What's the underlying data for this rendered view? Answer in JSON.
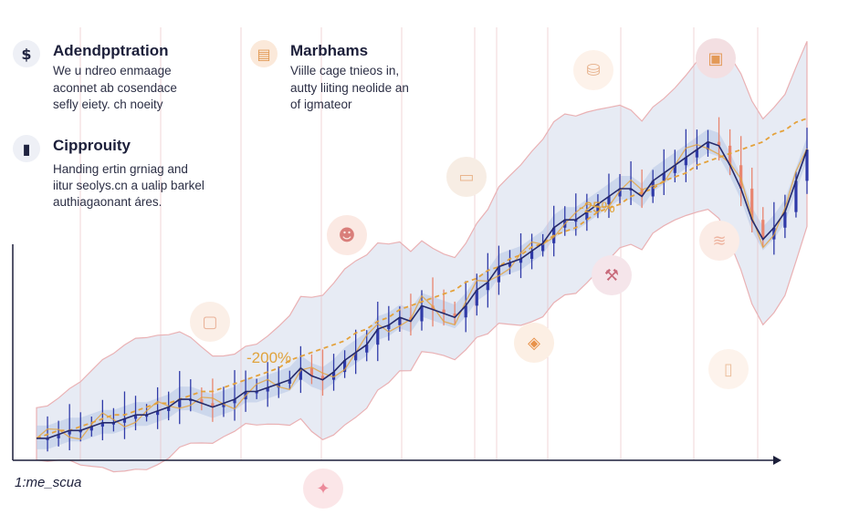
{
  "info_blocks": [
    {
      "icon": "dollar-icon",
      "glyph": "$",
      "title": "Adendpptration",
      "lines": [
        "We u ndreo enmaage",
        "aconnet ab cosendace",
        "sefly eiety. ch noeity"
      ]
    },
    {
      "icon": "box-icon",
      "glyph": "▤",
      "title": "Marbhams",
      "lines": [
        "Viille cage tnieos in,",
        "autty liiting neolide an",
        "of igmateor"
      ]
    },
    {
      "icon": "chat-icon",
      "glyph": "▮",
      "title": "Cipprouity",
      "lines": [
        "Handing ertin grniag and",
        "iitur seolys.cn a ualip barkel",
        "authiagaonant áres."
      ]
    }
  ],
  "axis_label": "1:me_scua",
  "annotations": [
    {
      "text": "-25%"
    },
    {
      "text": "-200%"
    }
  ],
  "colors": {
    "price_line": "#262a6b",
    "trend_dashed": "#e4a23c",
    "band": "#c9d3e6",
    "band_outline": "#e7a0a3",
    "candle_up": "#2f3aa8",
    "candle_down": "#e8856f"
  },
  "chart_data": {
    "type": "line",
    "title": "",
    "xlabel": "1:me_scua",
    "ylabel": "",
    "ylim": [
      0,
      100
    ],
    "x": [
      0,
      1,
      2,
      3,
      4,
      5,
      6,
      7,
      8,
      9,
      10,
      11,
      12,
      13,
      14,
      15,
      16,
      17,
      18,
      19,
      20,
      21,
      22,
      23,
      24,
      25,
      26,
      27,
      28,
      29,
      30,
      31,
      32,
      33,
      34,
      35,
      36,
      37,
      38,
      39,
      40,
      41,
      42,
      43,
      44,
      45,
      46,
      47,
      48,
      49,
      50,
      51,
      52,
      53,
      54,
      55,
      56,
      57,
      58,
      59,
      60,
      61,
      62,
      63,
      64,
      65,
      66,
      67,
      68,
      69,
      70
    ],
    "series": [
      {
        "values": [
          4,
          4,
          5,
          6,
          6,
          7,
          8,
          8,
          9,
          10,
          10,
          11,
          12,
          14,
          14,
          13,
          12,
          13,
          14,
          16,
          16,
          17,
          18,
          19,
          22,
          20,
          19,
          21,
          24,
          26,
          28,
          32,
          33,
          35,
          34,
          38,
          37,
          36,
          35,
          38,
          42,
          44,
          48,
          49,
          50,
          52,
          54,
          58,
          60,
          60,
          62,
          64,
          66,
          68,
          68,
          66,
          70,
          72,
          74,
          76,
          78,
          80,
          79,
          74,
          68,
          60,
          55,
          58,
          62,
          70,
          78
        ]
      },
      {
        "values": [
          4,
          5,
          6,
          6,
          7,
          8,
          9,
          10,
          10,
          11,
          12,
          13,
          13,
          14,
          15,
          16,
          16,
          17,
          18,
          19,
          20,
          21,
          22,
          24,
          25,
          26,
          27,
          28,
          29,
          31,
          32,
          34,
          35,
          37,
          38,
          39,
          40,
          41,
          42,
          44,
          45,
          47,
          48,
          50,
          51,
          53,
          54,
          56,
          57,
          58,
          60,
          62,
          63,
          64,
          66,
          67,
          68,
          70,
          71,
          72,
          74,
          75,
          76,
          77,
          78,
          79,
          80,
          82,
          83,
          85,
          86
        ]
      }
    ]
  }
}
